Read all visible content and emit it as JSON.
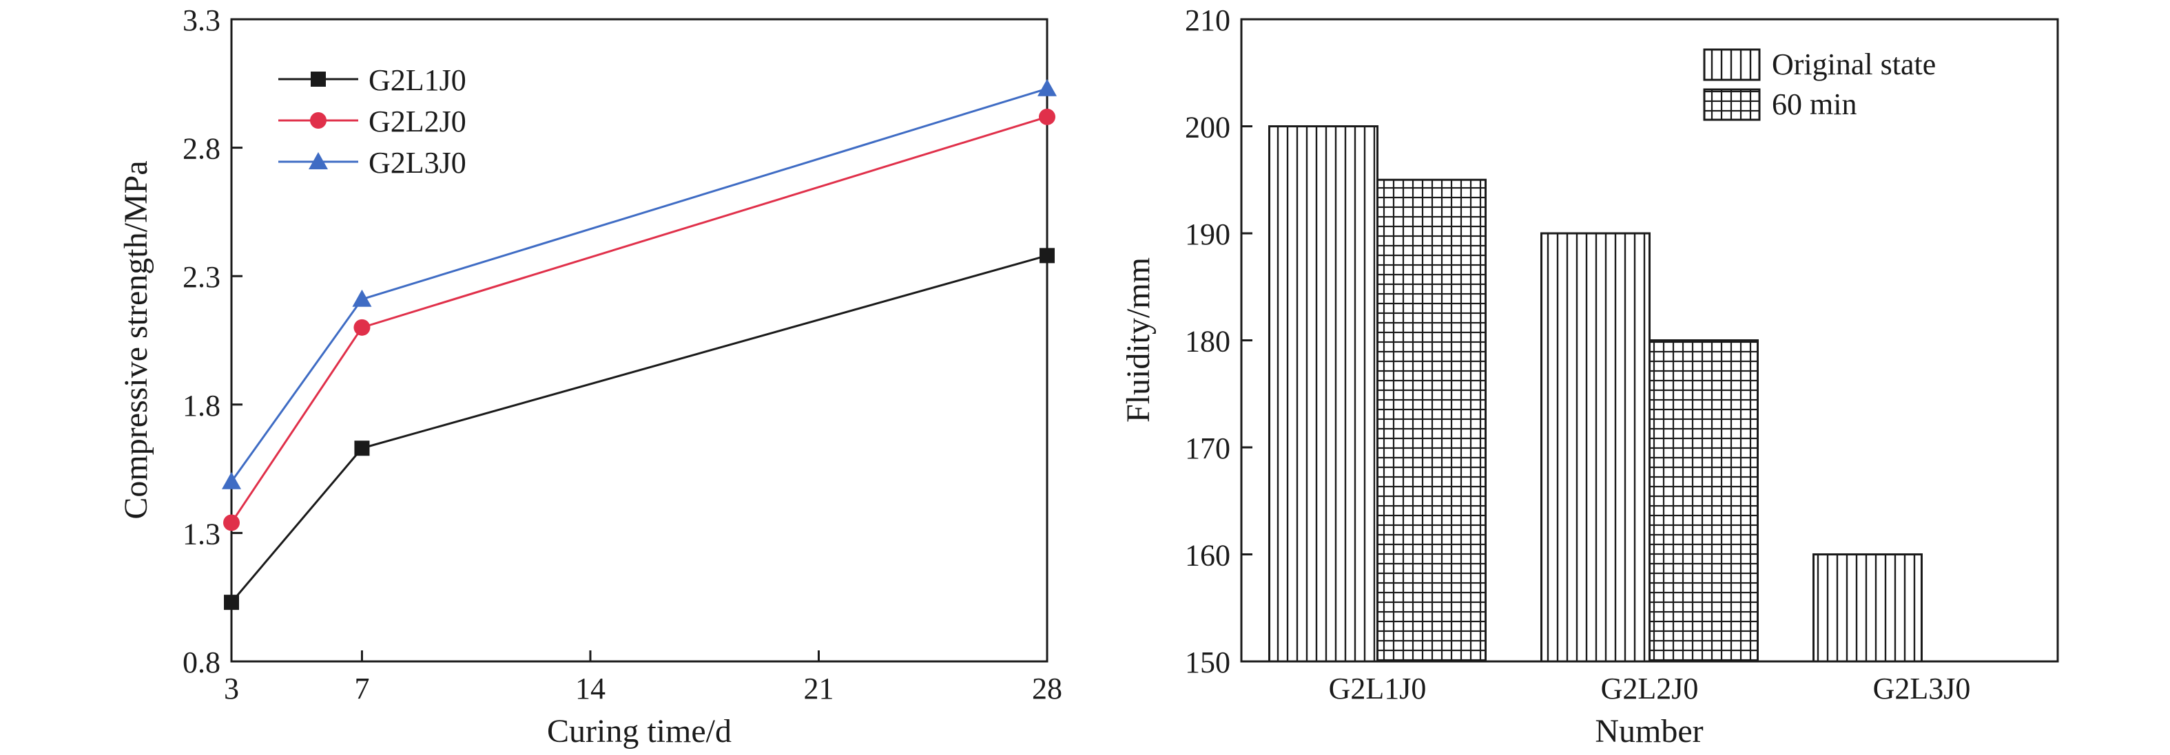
{
  "chart_data": [
    {
      "type": "line",
      "xlabel": "Curing time/d",
      "ylabel": "Compressive strength/MPa",
      "xlim": [
        3,
        28
      ],
      "ylim": [
        0.8,
        3.3
      ],
      "xticks": [
        3,
        7,
        14,
        21,
        28
      ],
      "yticks": [
        0.8,
        1.3,
        1.8,
        2.3,
        2.8,
        3.3
      ],
      "legend_position": "top-left",
      "x": [
        3,
        7,
        28
      ],
      "series": [
        {
          "name": "G2L1J0",
          "values": [
            1.03,
            1.63,
            2.38
          ],
          "color": "#1a1a1a",
          "marker": "square"
        },
        {
          "name": "G2L2J0",
          "values": [
            1.34,
            2.1,
            2.92
          ],
          "color": "#e0304a",
          "marker": "circle"
        },
        {
          "name": "G2L3J0",
          "values": [
            1.5,
            2.21,
            3.03
          ],
          "color": "#3f6cc4",
          "marker": "triangle"
        }
      ]
    },
    {
      "type": "bar",
      "xlabel": "Number",
      "ylabel": "Fluidity/mm",
      "ylim": [
        150,
        210
      ],
      "yticks": [
        150,
        160,
        170,
        180,
        190,
        200,
        210
      ],
      "categories": [
        "G2L1J0",
        "G2L2J0",
        "G2L3J0"
      ],
      "legend_position": "top-right",
      "series": [
        {
          "name": "Original state",
          "values": [
            200,
            190,
            160
          ],
          "pattern": "vertical-lines"
        },
        {
          "name": "60 min",
          "values": [
            195,
            180,
            null
          ],
          "pattern": "grid"
        }
      ]
    }
  ]
}
